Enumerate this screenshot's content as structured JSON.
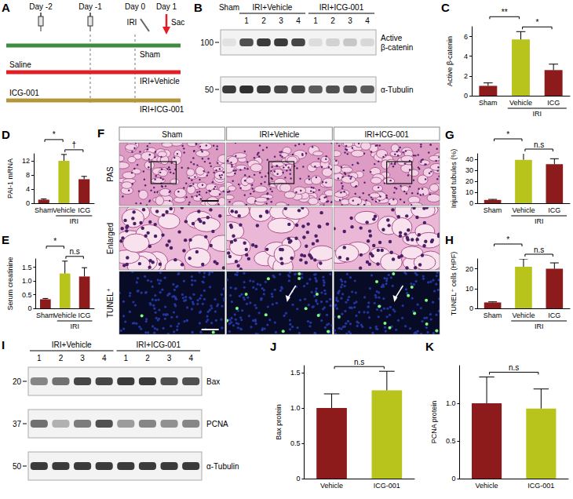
{
  "figure": {
    "timeline": {
      "panel": "A",
      "days": [
        "Day -2",
        "Day -1",
        "Day 0",
        "Day 1"
      ],
      "surgery": "IRI",
      "sacrifice": "Sac",
      "groups": [
        {
          "name": "Sham",
          "color": "#3d8c40"
        },
        {
          "name": "IRI+Vehicle",
          "treatment": "Saline",
          "color": "#e31e24"
        },
        {
          "name": "IRI+ICG-001",
          "treatment": "ICG-001",
          "color": "#b5953b"
        }
      ]
    },
    "blot_top": {
      "panel": "B",
      "groups": [
        {
          "label": "Sham",
          "lanes": [
            null
          ]
        },
        {
          "label": "IRI+Vehicle",
          "lanes": [
            "1",
            "2",
            "3",
            "4"
          ]
        },
        {
          "label": "IRI+ICG-001",
          "lanes": [
            "1",
            "2",
            "3",
            "4"
          ]
        }
      ],
      "rows": [
        {
          "name": "Active β-catenin",
          "mw": 100,
          "intensity": [
            0.08,
            0.75,
            0.85,
            0.85,
            0.8,
            0.1,
            0.15,
            0.2,
            0.12
          ]
        },
        {
          "name": "α-Tubulin",
          "mw": 50,
          "intensity": [
            0.85,
            0.9,
            0.85,
            0.8,
            0.8,
            0.7,
            0.75,
            0.75,
            0.7
          ]
        }
      ]
    },
    "histology": {
      "panel": "F",
      "columns": [
        "Sham",
        "IRI+Vehicle",
        "IRI+ICG-001"
      ],
      "rows": [
        "PAS",
        "Enlarged",
        "TUNEL⁺"
      ]
    },
    "blot_bottom": {
      "panel": "I",
      "groups": [
        {
          "label": "IRI+Vehicle",
          "lanes": [
            "1",
            "2",
            "3",
            "4"
          ]
        },
        {
          "label": "IRI+ICG-001",
          "lanes": [
            "1",
            "2",
            "3",
            "4"
          ]
        }
      ],
      "rows": [
        {
          "name": "Bax",
          "mw": 20,
          "intensity": [
            0.5,
            0.6,
            0.8,
            0.8,
            0.85,
            0.85,
            0.75,
            0.75
          ]
        },
        {
          "name": "PCNA",
          "mw": 37,
          "intensity": [
            0.6,
            0.3,
            0.55,
            0.75,
            0.4,
            0.5,
            0.45,
            0.5
          ]
        },
        {
          "name": "α-Tubulin",
          "mw": 50,
          "intensity": [
            0.85,
            0.85,
            0.85,
            0.85,
            0.85,
            0.85,
            0.85,
            0.85
          ]
        }
      ]
    }
  },
  "chart_data": [
    {
      "type": "bar",
      "panel": "C",
      "y_label": "Active β-catenin",
      "categories": [
        "Sham",
        "Vehicle",
        "ICG"
      ],
      "values": [
        1.0,
        5.7,
        2.6
      ],
      "errors": [
        0.3,
        0.8,
        0.6
      ],
      "colors": [
        "#8e1b1b",
        "#b8c41c",
        "#8e1b1b"
      ],
      "ylim": [
        0,
        7
      ],
      "yticks": [
        0,
        2,
        4,
        6
      ],
      "grid": false,
      "group": {
        "label": "IRI",
        "categories": [
          "Vehicle",
          "ICG"
        ]
      },
      "significance": [
        {
          "between": [
            "Vehicle",
            "ICG"
          ],
          "label": "*"
        },
        {
          "between": [
            "Sham",
            "Vehicle"
          ],
          "label": "**"
        }
      ]
    },
    {
      "type": "bar",
      "panel": "D",
      "y_label": "PAI-1 mRNA",
      "categories": [
        "Sham",
        "Vehicle",
        "ICG"
      ],
      "values": [
        1.0,
        12.0,
        6.8
      ],
      "errors": [
        0.2,
        1.8,
        0.8
      ],
      "colors": [
        "#8e1b1b",
        "#b8c41c",
        "#8e1b1b"
      ],
      "ylim": [
        0,
        14
      ],
      "yticks": [
        0,
        4,
        8,
        12
      ],
      "grid": false,
      "group": {
        "label": "IRI",
        "categories": [
          "Vehicle",
          "ICG"
        ]
      },
      "significance": [
        {
          "between": [
            "Vehicle",
            "ICG"
          ],
          "label": "†"
        },
        {
          "between": [
            "Sham",
            "Vehicle"
          ],
          "label": "*"
        }
      ]
    },
    {
      "type": "bar",
      "panel": "E",
      "y_label": "Serum creatinine",
      "categories": [
        "Sham",
        "Vehicle",
        "ICG"
      ],
      "values": [
        0.33,
        1.27,
        1.16
      ],
      "errors": [
        0.03,
        0.45,
        0.32
      ],
      "colors": [
        "#8e1b1b",
        "#b8c41c",
        "#8e1b1b"
      ],
      "ylim": [
        0,
        1.8
      ],
      "yticks": [
        0,
        0.5,
        {
          "value": 1,
          "label": "1.0"
        },
        1.5
      ],
      "grid": false,
      "group": {
        "label": "IRI",
        "categories": [
          "Vehicle",
          "ICG"
        ]
      },
      "significance": [
        {
          "between": [
            "Vehicle",
            "ICG"
          ],
          "label": "n.s"
        },
        {
          "between": [
            "Sham",
            "Vehicle"
          ],
          "label": "*"
        }
      ]
    },
    {
      "type": "bar",
      "panel": "G",
      "y_label": "Injured tubules (%)",
      "categories": [
        "Sham",
        "Vehicle",
        "ICG"
      ],
      "values": [
        3,
        39.5,
        35.5
      ],
      "errors": [
        0.5,
        6,
        5
      ],
      "colors": [
        "#8e1b1b",
        "#b8c41c",
        "#8e1b1b"
      ],
      "ylim": [
        0,
        45
      ],
      "yticks": [
        0,
        10,
        20,
        30,
        40
      ],
      "grid": false,
      "group": {
        "label": "IRI",
        "categories": [
          "Vehicle",
          "ICG"
        ]
      },
      "significance": [
        {
          "between": [
            "Vehicle",
            "ICG"
          ],
          "label": "n.s"
        },
        {
          "between": [
            "Sham",
            "Vehicle"
          ],
          "label": "*"
        }
      ]
    },
    {
      "type": "bar",
      "panel": "H",
      "y_label": "TUNEL⁺ cells (HPF)",
      "categories": [
        "Sham",
        "Vehicle",
        "ICG"
      ],
      "values": [
        3,
        21,
        20
      ],
      "errors": [
        0.3,
        4,
        3
      ],
      "colors": [
        "#8e1b1b",
        "#b8c41c",
        "#8e1b1b"
      ],
      "ylim": [
        0,
        25
      ],
      "yticks": [
        0,
        10,
        20
      ],
      "grid": false,
      "group": {
        "label": "IRI",
        "categories": [
          "Vehicle",
          "ICG"
        ]
      },
      "significance": [
        {
          "between": [
            "Vehicle",
            "ICG"
          ],
          "label": "n.s"
        },
        {
          "between": [
            "Sham",
            "Vehicle"
          ],
          "label": "*"
        }
      ]
    },
    {
      "type": "bar",
      "panel": "J",
      "y_label": "Bax protein",
      "categories": [
        "Vehicle",
        "ICG-001"
      ],
      "values": [
        1.0,
        1.25
      ],
      "errors": [
        0.2,
        0.27
      ],
      "colors": [
        "#8e1b1b",
        "#b8c41c"
      ],
      "ylim": [
        0,
        1.6
      ],
      "yticks": [
        0,
        0.5,
        {
          "value": 1,
          "label": "1.0"
        },
        1.5
      ],
      "grid": false,
      "significance": [
        {
          "between": [
            "Vehicle",
            "ICG-001"
          ],
          "label": "n.s"
        }
      ]
    },
    {
      "type": "bar",
      "panel": "K",
      "y_label": "PCNA protein",
      "categories": [
        "Vehicle",
        "ICG-001"
      ],
      "values": [
        1.0,
        0.93
      ],
      "errors": [
        0.35,
        0.26
      ],
      "colors": [
        "#8e1b1b",
        "#b8c41c"
      ],
      "ylim": [
        0,
        1.5
      ],
      "yticks": [
        0,
        0.5,
        {
          "value": 1,
          "label": "1.0"
        }
      ],
      "grid": false,
      "significance": [
        {
          "between": [
            "Vehicle",
            "ICG-001"
          ],
          "label": "n.s"
        }
      ]
    }
  ]
}
